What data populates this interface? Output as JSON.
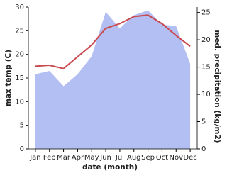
{
  "chart_data": {
    "type": "line-area",
    "categories": [
      "Jan",
      "Feb",
      "Mar",
      "Apr",
      "May",
      "Jun",
      "Jul",
      "Aug",
      "Sep",
      "Oct",
      "Nov",
      "Dec"
    ],
    "x_label": "date (month)",
    "y_label": "max temp (C)",
    "y2_label": "med. precipitation (kg/m2)",
    "ylim": [
      0,
      30
    ],
    "yticks": [
      0,
      5,
      10,
      15,
      20,
      25,
      30
    ],
    "y2lim": [
      0,
      26
    ],
    "y2ticks": [
      0,
      5,
      10,
      15,
      20,
      25
    ],
    "series": [
      {
        "name": "med. precipitation",
        "color": "#b3bff2",
        "axis": "y2",
        "kind": "area",
        "values": [
          13.7,
          14.3,
          11.5,
          13.7,
          17,
          25.1,
          22.1,
          24.5,
          25.4,
          22.8,
          22.5,
          15.6
        ]
      },
      {
        "name": "max temp",
        "color": "#c9494f",
        "kind": "line",
        "values": [
          17.5,
          17.7,
          17,
          19.5,
          22,
          25.5,
          26.5,
          28,
          28.3,
          26.5,
          24,
          21.7
        ]
      }
    ]
  }
}
